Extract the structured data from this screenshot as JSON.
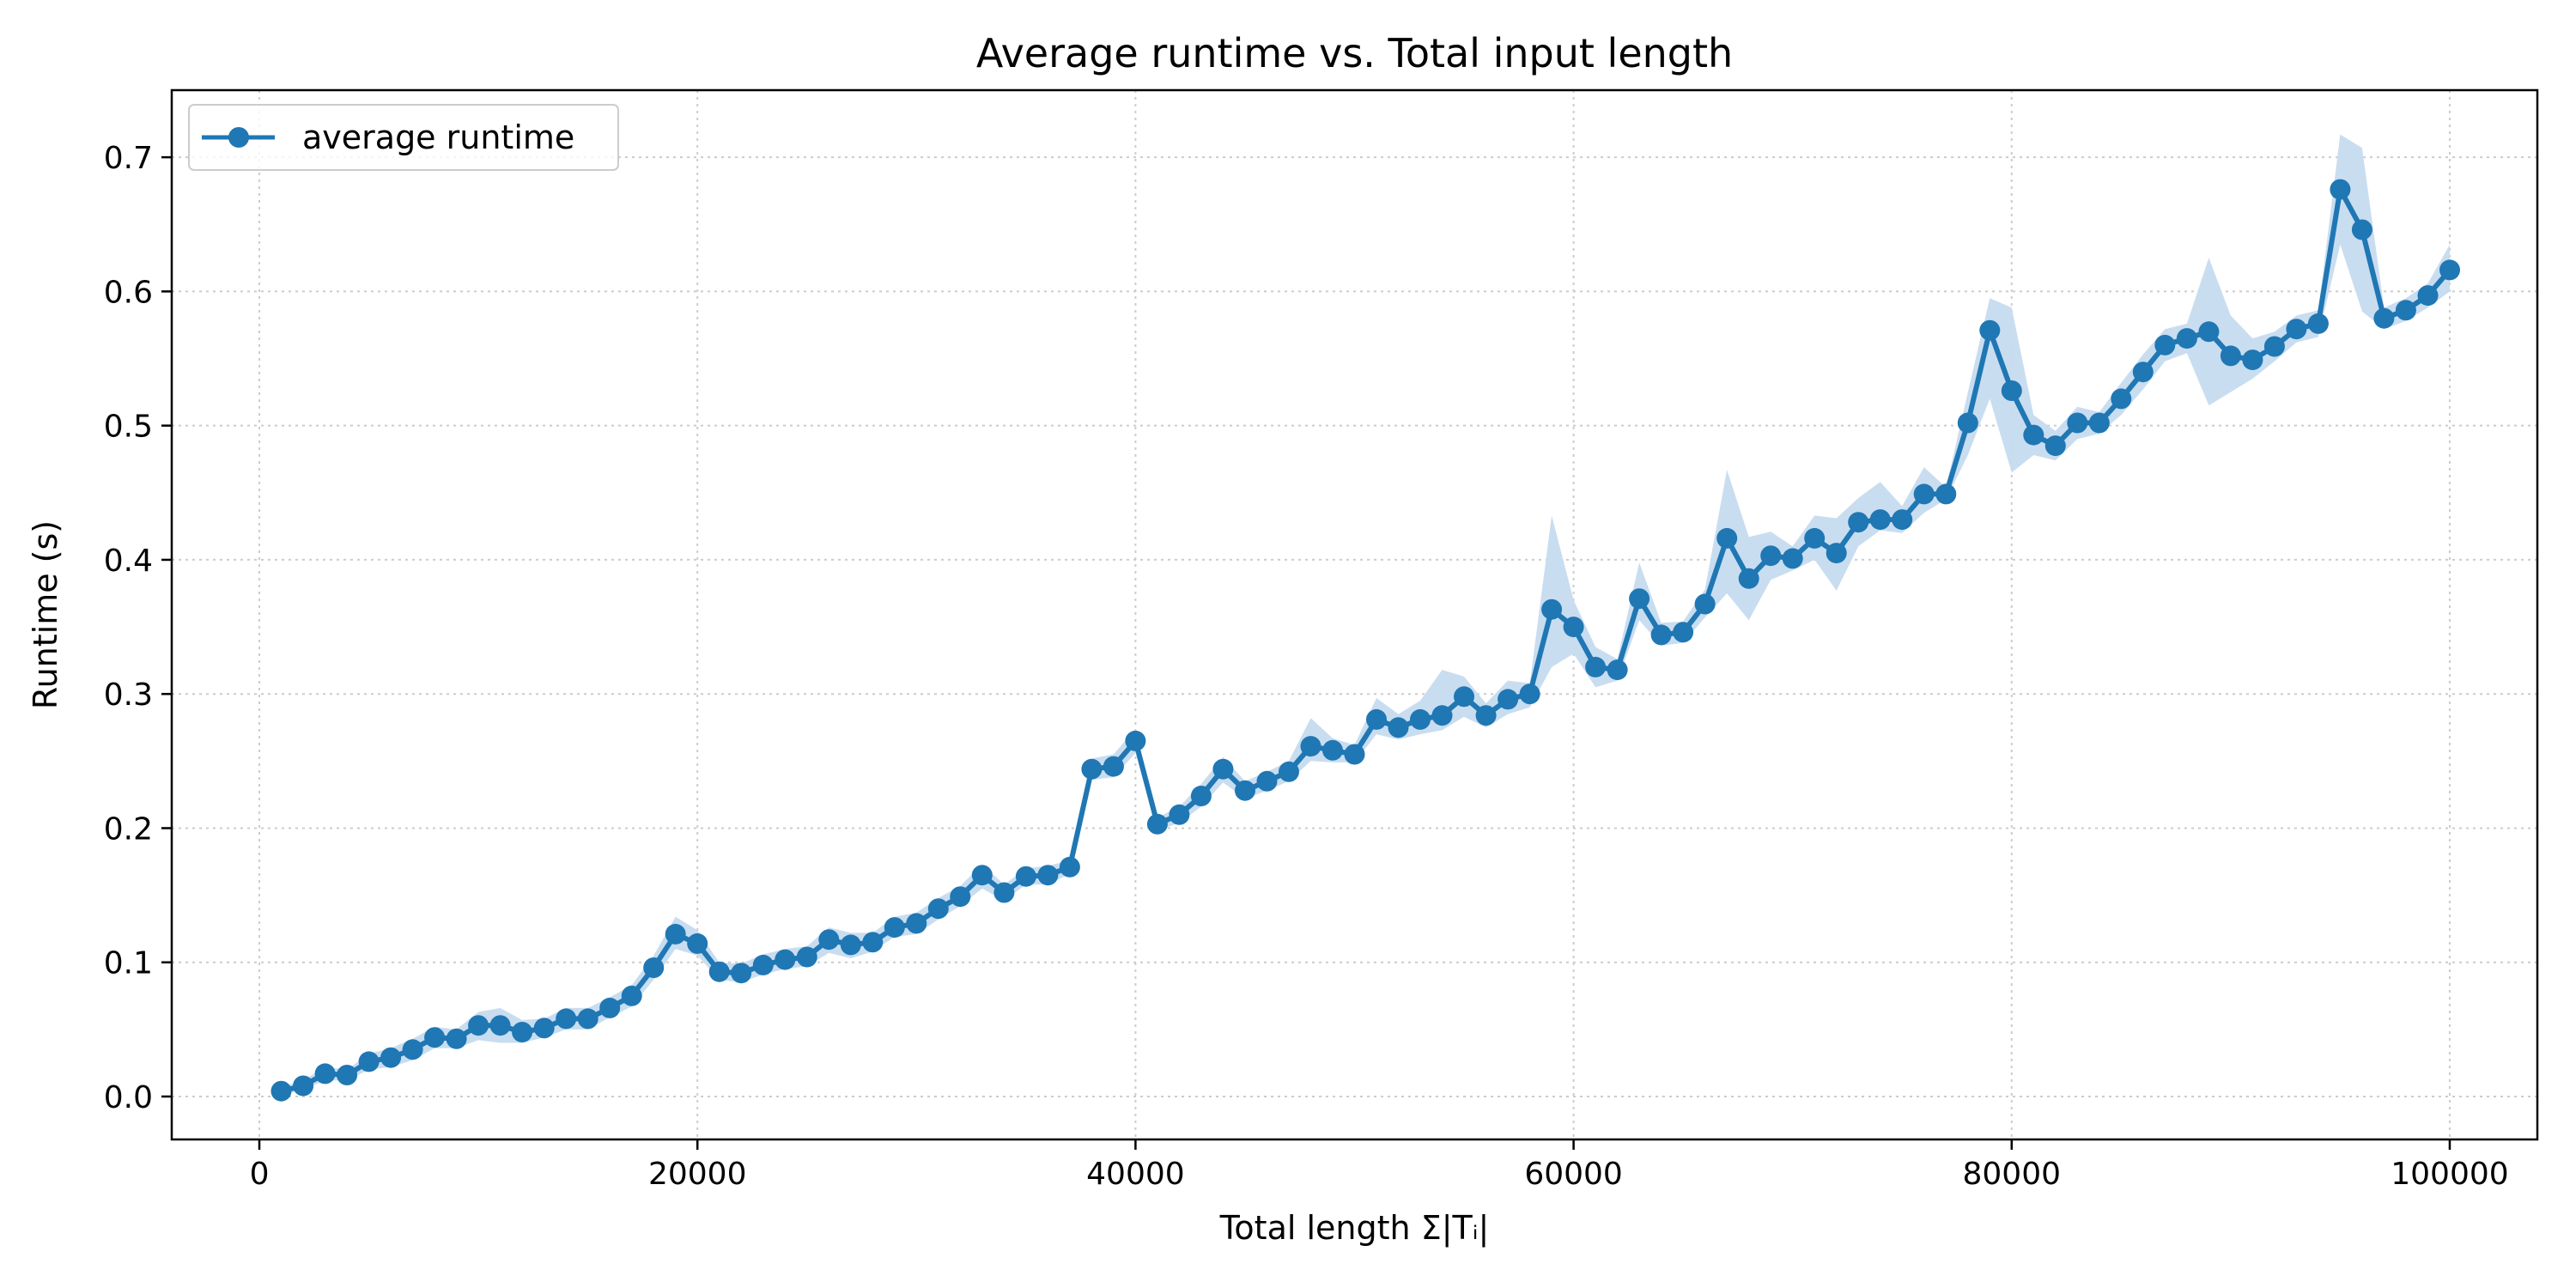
{
  "chart_data": {
    "type": "line",
    "title": "Average runtime vs. Total input length",
    "xlabel": "Total length Σ|Tᵢ|",
    "ylabel": "Runtime (s)",
    "xlim": [
      -4000,
      104000
    ],
    "ylim": [
      -0.032,
      0.75
    ],
    "x_ticks": [
      0,
      20000,
      40000,
      60000,
      80000,
      100000
    ],
    "x_tick_labels": [
      "0",
      "20000",
      "40000",
      "60000",
      "80000",
      "100000"
    ],
    "y_ticks": [
      0.0,
      0.1,
      0.2,
      0.3,
      0.4,
      0.5,
      0.6,
      0.7
    ],
    "y_tick_labels": [
      "0.0",
      "0.1",
      "0.2",
      "0.3",
      "0.4",
      "0.5",
      "0.6",
      "0.7"
    ],
    "grid": true,
    "legend_position": "top-left",
    "colors": {
      "line": "#1f77b4",
      "band": "#c6dbef",
      "grid": "#cccccc"
    },
    "series": [
      {
        "name": "average runtime",
        "x": [
          1000,
          2000,
          3000,
          4000,
          5000,
          6000,
          7000,
          8000,
          9000,
          10000,
          11000,
          12000,
          13000,
          14000,
          15000,
          16000,
          17000,
          18000,
          19000,
          20000,
          21000,
          22000,
          23000,
          24000,
          25000,
          26000,
          27000,
          28000,
          29000,
          30000,
          31000,
          32000,
          33000,
          34000,
          35000,
          36000,
          37000,
          38000,
          39000,
          40000,
          41000,
          42000,
          43000,
          44000,
          45000,
          46000,
          47000,
          48000,
          49000,
          50000,
          51000,
          52000,
          53000,
          54000,
          55000,
          56000,
          57000,
          58000,
          59000,
          60000,
          61000,
          62000,
          63000,
          64000,
          65000,
          66000,
          67000,
          68000,
          69000,
          70000,
          71000,
          72000,
          73000,
          74000,
          75000,
          76000,
          77000,
          78000,
          79000,
          80000,
          81000,
          82000,
          83000,
          84000,
          85000,
          86000,
          87000,
          88000,
          89000,
          90000,
          91000,
          92000,
          93000,
          94000,
          95000,
          96000,
          97000,
          98000,
          99000,
          100000
        ],
        "y": [
          0.004,
          0.008,
          0.017,
          0.016,
          0.026,
          0.029,
          0.035,
          0.044,
          0.043,
          0.053,
          0.053,
          0.048,
          0.051,
          0.058,
          0.058,
          0.066,
          0.075,
          0.096,
          0.121,
          0.114,
          0.093,
          0.092,
          0.098,
          0.102,
          0.104,
          0.117,
          0.113,
          0.115,
          0.126,
          0.129,
          0.14,
          0.149,
          0.165,
          0.152,
          0.164,
          0.165,
          0.171,
          0.244,
          0.246,
          0.265,
          0.203,
          0.21,
          0.224,
          0.244,
          0.228,
          0.235,
          0.242,
          0.261,
          0.258,
          0.255,
          0.281,
          0.275,
          0.281,
          0.284,
          0.298,
          0.284,
          0.296,
          0.3,
          0.363,
          0.35,
          0.32,
          0.318,
          0.371,
          0.344,
          0.346,
          0.367,
          0.416,
          0.386,
          0.403,
          0.401,
          0.416,
          0.405,
          0.428,
          0.43,
          0.43,
          0.449,
          0.449,
          0.502,
          0.571,
          0.526,
          0.493,
          0.485,
          0.502,
          0.502,
          0.52,
          0.54,
          0.56,
          0.565,
          0.57,
          0.552,
          0.549,
          0.559,
          0.572,
          0.576,
          0.676,
          0.646,
          0.58,
          0.586,
          0.597,
          0.616
        ],
        "lower": [
          0.001,
          0.005,
          0.012,
          0.012,
          0.02,
          0.022,
          0.027,
          0.036,
          0.036,
          0.042,
          0.04,
          0.04,
          0.044,
          0.05,
          0.05,
          0.059,
          0.067,
          0.087,
          0.11,
          0.105,
          0.087,
          0.085,
          0.091,
          0.095,
          0.097,
          0.107,
          0.103,
          0.108,
          0.119,
          0.121,
          0.132,
          0.142,
          0.155,
          0.146,
          0.158,
          0.158,
          0.166,
          0.236,
          0.238,
          0.256,
          0.198,
          0.204,
          0.216,
          0.234,
          0.222,
          0.228,
          0.235,
          0.25,
          0.249,
          0.249,
          0.27,
          0.266,
          0.27,
          0.273,
          0.283,
          0.275,
          0.285,
          0.29,
          0.32,
          0.33,
          0.305,
          0.31,
          0.355,
          0.336,
          0.338,
          0.357,
          0.375,
          0.355,
          0.385,
          0.392,
          0.4,
          0.377,
          0.41,
          0.422,
          0.42,
          0.435,
          0.445,
          0.478,
          0.52,
          0.465,
          0.478,
          0.474,
          0.49,
          0.494,
          0.508,
          0.527,
          0.548,
          0.554,
          0.515,
          0.525,
          0.535,
          0.548,
          0.562,
          0.566,
          0.635,
          0.585,
          0.572,
          0.578,
          0.588,
          0.6
        ],
        "upper": [
          0.007,
          0.012,
          0.022,
          0.02,
          0.032,
          0.036,
          0.043,
          0.052,
          0.05,
          0.063,
          0.066,
          0.057,
          0.058,
          0.066,
          0.066,
          0.074,
          0.083,
          0.105,
          0.134,
          0.124,
          0.1,
          0.099,
          0.106,
          0.11,
          0.112,
          0.126,
          0.122,
          0.122,
          0.134,
          0.137,
          0.148,
          0.157,
          0.173,
          0.158,
          0.17,
          0.172,
          0.176,
          0.252,
          0.255,
          0.274,
          0.208,
          0.216,
          0.233,
          0.253,
          0.235,
          0.242,
          0.25,
          0.282,
          0.267,
          0.262,
          0.297,
          0.285,
          0.295,
          0.318,
          0.313,
          0.293,
          0.31,
          0.308,
          0.433,
          0.37,
          0.335,
          0.326,
          0.398,
          0.353,
          0.354,
          0.378,
          0.467,
          0.417,
          0.421,
          0.41,
          0.433,
          0.431,
          0.446,
          0.458,
          0.44,
          0.469,
          0.454,
          0.525,
          0.595,
          0.588,
          0.508,
          0.496,
          0.514,
          0.51,
          0.532,
          0.553,
          0.572,
          0.576,
          0.625,
          0.582,
          0.565,
          0.57,
          0.582,
          0.586,
          0.717,
          0.707,
          0.588,
          0.595,
          0.606,
          0.635
        ]
      }
    ]
  }
}
